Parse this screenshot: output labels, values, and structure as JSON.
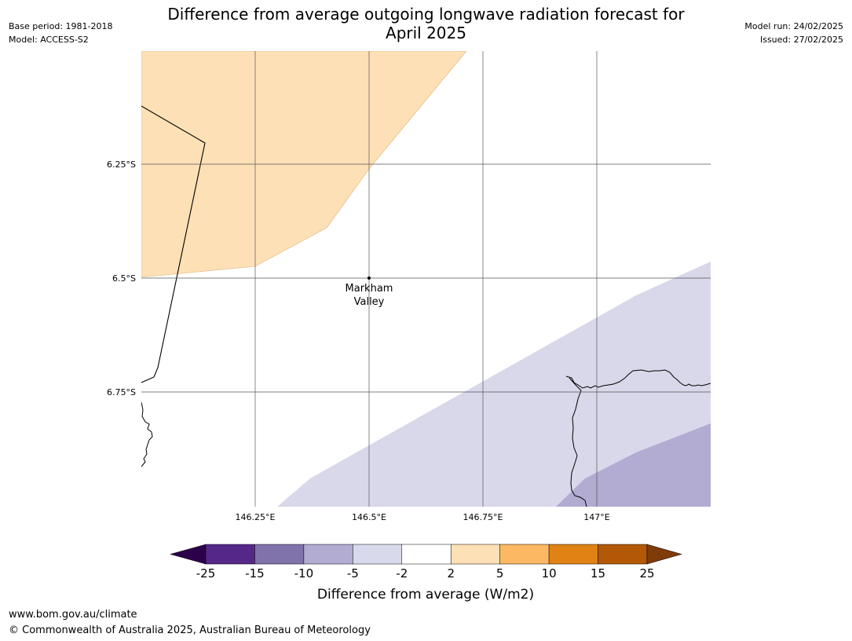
{
  "header": {
    "title_line1": "Difference from average outgoing longwave radiation forecast for",
    "title_line2": "April 2025",
    "base_period": "Base period: 1981-2018",
    "model": "Model: ACCESS-S2",
    "model_run": "Model run: 24/02/2025",
    "issued": "Issued: 27/02/2025"
  },
  "map": {
    "lat_labels": [
      "6.25°S",
      "6.5°S",
      "6.75°S"
    ],
    "lon_labels": [
      "146.25°E",
      "146.5°E",
      "146.75°E",
      "147°E"
    ],
    "place": {
      "name_line1": "Markham",
      "name_line2": "Valley"
    },
    "colors": {
      "positive_2_5": "#fde0b6",
      "negative_2_5": "#d8d8ea",
      "negative_5_10": "#b2abd2",
      "grid": "#555555",
      "coast": "#000000"
    }
  },
  "legend": {
    "title": "Difference from average (W/m2)",
    "tick_labels": [
      "-25",
      "-15",
      "-10",
      "-5",
      "-2",
      "2",
      "5",
      "10",
      "15",
      "25"
    ],
    "colors": [
      "#2d004b",
      "#542788",
      "#8073ac",
      "#b2abd2",
      "#d8daeb",
      "#ffffff",
      "#fee0b6",
      "#fdb863",
      "#e08214",
      "#b35806",
      "#7f3b08"
    ]
  },
  "footer": {
    "url": "www.bom.gov.au/climate",
    "copyright": "© Commonwealth of Australia 2025, Australian Bureau of Meteorology"
  }
}
